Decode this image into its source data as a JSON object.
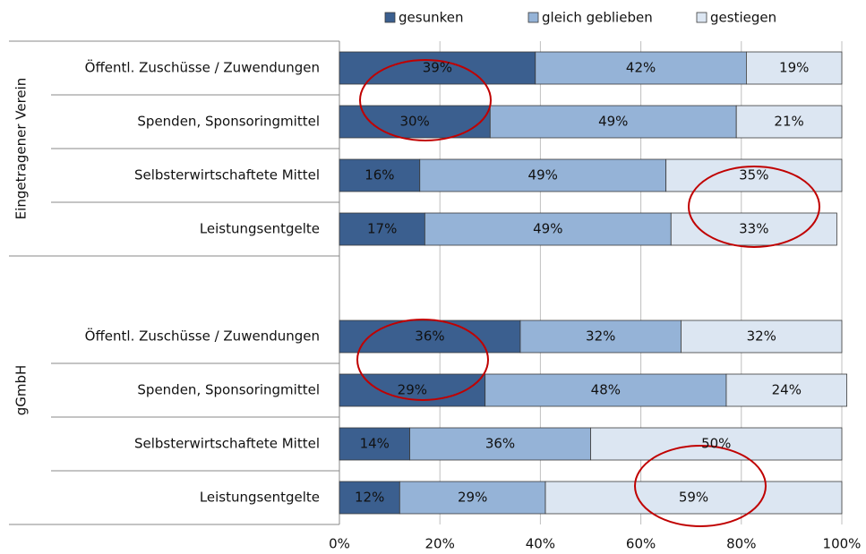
{
  "chart_data": {
    "type": "stacked-bar-horizontal",
    "groups": [
      "Eingetragener Verein",
      "gGmbH"
    ],
    "categories": [
      "Öffentl. Zuschüsse / Zuwendungen",
      "Spenden, Sponsoringmittel",
      "Selbsterwirtschaftete Mittel",
      "Leistungsentgelte",
      null,
      "Öffentl. Zuschüsse / Zuwendungen",
      "Spenden, Sponsoringmittel",
      "Selbsterwirtschaftete Mittel",
      "Leistungsentgelte"
    ],
    "series": [
      {
        "name": "gesunken",
        "color": "#3b5f8f",
        "values": [
          39,
          30,
          16,
          17,
          null,
          36,
          29,
          14,
          12
        ],
        "value_labels": [
          "39%",
          "30%",
          "16%",
          "17%",
          null,
          "36%",
          "29%",
          "14%",
          "12%"
        ]
      },
      {
        "name": "gleich geblieben",
        "color": "#95b3d7",
        "values": [
          42,
          49,
          49,
          49,
          null,
          32,
          48,
          36,
          29
        ],
        "value_labels": [
          "42%",
          "49%",
          "49%",
          "49%",
          null,
          "32%",
          "48%",
          "36%",
          "29%"
        ]
      },
      {
        "name": "gestiegen",
        "color": "#dce6f2",
        "values": [
          19,
          21,
          35,
          33,
          null,
          32,
          24,
          50,
          59
        ],
        "value_labels": [
          "19%",
          "21%",
          "35%",
          "33%",
          null,
          "32%",
          "24%",
          "50%",
          "59%"
        ]
      }
    ],
    "xlim": [
      0,
      100
    ],
    "xticks": [
      {
        "value": 0,
        "label": "0%"
      },
      {
        "value": 20,
        "label": "20%"
      },
      {
        "value": 40,
        "label": "40%"
      },
      {
        "value": 60,
        "label": "60%"
      },
      {
        "value": 80,
        "label": "80%"
      },
      {
        "value": 100,
        "label": "100%"
      }
    ],
    "grid": true,
    "legend": "top"
  }
}
